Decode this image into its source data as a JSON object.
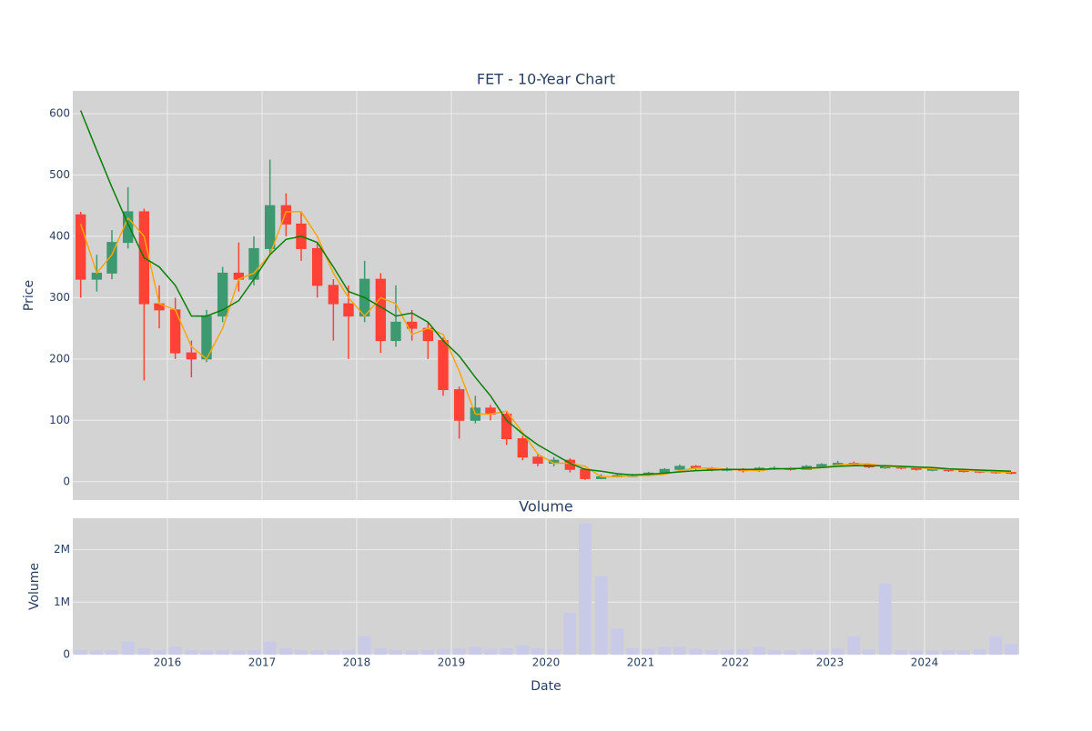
{
  "chart_data": [
    {
      "type": "candlestick",
      "title": "FET - 10-Year Chart",
      "ylabel": "Price",
      "x": [
        2015.0,
        2015.17,
        2015.33,
        2015.5,
        2015.67,
        2015.83,
        2016.0,
        2016.17,
        2016.33,
        2016.5,
        2016.67,
        2016.83,
        2017.0,
        2017.17,
        2017.33,
        2017.5,
        2017.67,
        2017.83,
        2018.0,
        2018.17,
        2018.33,
        2018.5,
        2018.67,
        2018.83,
        2019.0,
        2019.17,
        2019.33,
        2019.5,
        2019.67,
        2019.83,
        2020.0,
        2020.17,
        2020.33,
        2020.5,
        2020.67,
        2020.83,
        2021.0,
        2021.17,
        2021.33,
        2021.5,
        2021.67,
        2021.83,
        2022.0,
        2022.17,
        2022.33,
        2022.5,
        2022.67,
        2022.83,
        2023.0,
        2023.17,
        2023.33,
        2023.5,
        2023.67,
        2023.83,
        2024.0,
        2024.17,
        2024.33,
        2024.5,
        2024.67,
        2024.83
      ],
      "open": [
        435,
        330,
        340,
        390,
        440,
        290,
        280,
        210,
        200,
        270,
        340,
        330,
        380,
        450,
        420,
        380,
        320,
        290,
        270,
        330,
        230,
        260,
        250,
        230,
        150,
        100,
        120,
        110,
        70,
        40,
        30,
        35,
        20,
        5,
        8,
        10,
        10,
        14,
        20,
        25,
        22,
        20,
        20,
        18,
        22,
        22,
        20,
        25,
        28,
        30,
        28,
        24,
        24,
        22,
        20,
        20,
        18,
        17,
        16,
        15
      ],
      "high": [
        440,
        370,
        410,
        480,
        445,
        320,
        300,
        230,
        280,
        350,
        390,
        400,
        525,
        470,
        440,
        390,
        330,
        320,
        360,
        340,
        320,
        280,
        260,
        235,
        155,
        140,
        125,
        115,
        75,
        45,
        40,
        38,
        22,
        12,
        14,
        13,
        16,
        22,
        28,
        27,
        24,
        23,
        22,
        24,
        25,
        24,
        27,
        30,
        34,
        33,
        30,
        27,
        26,
        23,
        22,
        21,
        19,
        18,
        17,
        16
      ],
      "low": [
        300,
        310,
        330,
        380,
        165,
        250,
        200,
        170,
        195,
        260,
        310,
        320,
        370,
        400,
        360,
        300,
        230,
        200,
        260,
        210,
        220,
        230,
        200,
        140,
        70,
        95,
        100,
        60,
        35,
        25,
        25,
        15,
        3,
        4,
        7,
        8,
        9,
        13,
        18,
        19,
        17,
        17,
        15,
        16,
        19,
        18,
        19,
        24,
        26,
        26,
        22,
        21,
        20,
        18,
        17,
        16,
        15,
        14,
        13,
        12
      ],
      "close": [
        330,
        340,
        390,
        440,
        290,
        280,
        210,
        200,
        270,
        340,
        330,
        380,
        450,
        420,
        380,
        320,
        290,
        270,
        330,
        230,
        260,
        250,
        230,
        150,
        100,
        120,
        110,
        70,
        40,
        30,
        35,
        20,
        5,
        8,
        10,
        10,
        14,
        20,
        25,
        22,
        20,
        20,
        18,
        22,
        22,
        20,
        25,
        28,
        30,
        28,
        24,
        24,
        22,
        20,
        20,
        18,
        17,
        16,
        15,
        14
      ],
      "increasing_color": "#3d9970",
      "decreasing_color": "#ff4136",
      "lines": [
        {
          "color": "orange",
          "values": [
            420,
            340,
            370,
            430,
            400,
            290,
            280,
            220,
            200,
            250,
            330,
            340,
            370,
            440,
            440,
            400,
            340,
            300,
            270,
            300,
            290,
            240,
            250,
            240,
            180,
            110,
            110,
            115,
            80,
            45,
            30,
            30,
            25,
            8,
            8,
            10,
            10,
            12,
            18,
            22,
            22,
            20,
            19,
            18,
            21,
            22,
            21,
            23,
            27,
            29,
            29,
            25,
            24,
            23,
            21,
            20,
            19,
            17,
            16,
            15
          ]
        },
        {
          "color": "green",
          "values": [
            605,
            540,
            480,
            420,
            365,
            350,
            320,
            270,
            270,
            280,
            295,
            330,
            370,
            395,
            400,
            390,
            350,
            310,
            300,
            285,
            270,
            275,
            260,
            230,
            205,
            170,
            140,
            100,
            78,
            60,
            45,
            30,
            20,
            17,
            13,
            11,
            12,
            14,
            16,
            18,
            19,
            20,
            20,
            20,
            21,
            21,
            22,
            23,
            25,
            26,
            26,
            26,
            25,
            24,
            23,
            21,
            20,
            19,
            18,
            17
          ]
        }
      ],
      "xlim": [
        2015,
        2025
      ],
      "xticks": [
        2016,
        2017,
        2018,
        2019,
        2020,
        2021,
        2022,
        2023,
        2024
      ],
      "ylim": [
        -30,
        637
      ],
      "yticks": [
        0,
        100,
        200,
        300,
        400,
        500,
        600
      ],
      "grid": true
    },
    {
      "type": "bar",
      "title": "Volume",
      "ylabel": "Volume",
      "xlabel": "Date",
      "x": [
        2015.0,
        2015.17,
        2015.33,
        2015.5,
        2015.67,
        2015.83,
        2016.0,
        2016.17,
        2016.33,
        2016.5,
        2016.67,
        2016.83,
        2017.0,
        2017.17,
        2017.33,
        2017.5,
        2017.67,
        2017.83,
        2018.0,
        2018.17,
        2018.33,
        2018.5,
        2018.67,
        2018.83,
        2019.0,
        2019.17,
        2019.33,
        2019.5,
        2019.67,
        2019.83,
        2020.0,
        2020.17,
        2020.33,
        2020.5,
        2020.67,
        2020.83,
        2021.0,
        2021.17,
        2021.33,
        2021.5,
        2021.67,
        2021.83,
        2022.0,
        2022.17,
        2022.33,
        2022.5,
        2022.67,
        2022.83,
        2023.0,
        2023.17,
        2023.33,
        2023.5,
        2023.67,
        2023.83,
        2024.0,
        2024.17,
        2024.33,
        2024.5,
        2024.67,
        2024.83
      ],
      "values": [
        90000,
        80000,
        90000,
        250000,
        120000,
        90000,
        150000,
        90000,
        80000,
        90000,
        80000,
        90000,
        250000,
        120000,
        90000,
        80000,
        90000,
        90000,
        350000,
        120000,
        90000,
        80000,
        90000,
        100000,
        120000,
        150000,
        110000,
        120000,
        180000,
        120000,
        100000,
        800000,
        2500000,
        1500000,
        500000,
        120000,
        110000,
        150000,
        150000,
        110000,
        90000,
        90000,
        100000,
        150000,
        90000,
        80000,
        100000,
        90000,
        110000,
        350000,
        100000,
        1350000,
        90000,
        80000,
        80000,
        90000,
        80000,
        100000,
        350000,
        200000
      ],
      "color": "#c8cae8",
      "xlim": [
        2015,
        2025
      ],
      "xticks": [
        2016,
        2017,
        2018,
        2019,
        2020,
        2021,
        2022,
        2023,
        2024
      ],
      "ylim": [
        0,
        2600000
      ],
      "yticks": [
        0,
        {
          "value": 1000000,
          "label": "1M"
        },
        {
          "value": 2000000,
          "label": "2M"
        }
      ],
      "grid": true
    }
  ]
}
